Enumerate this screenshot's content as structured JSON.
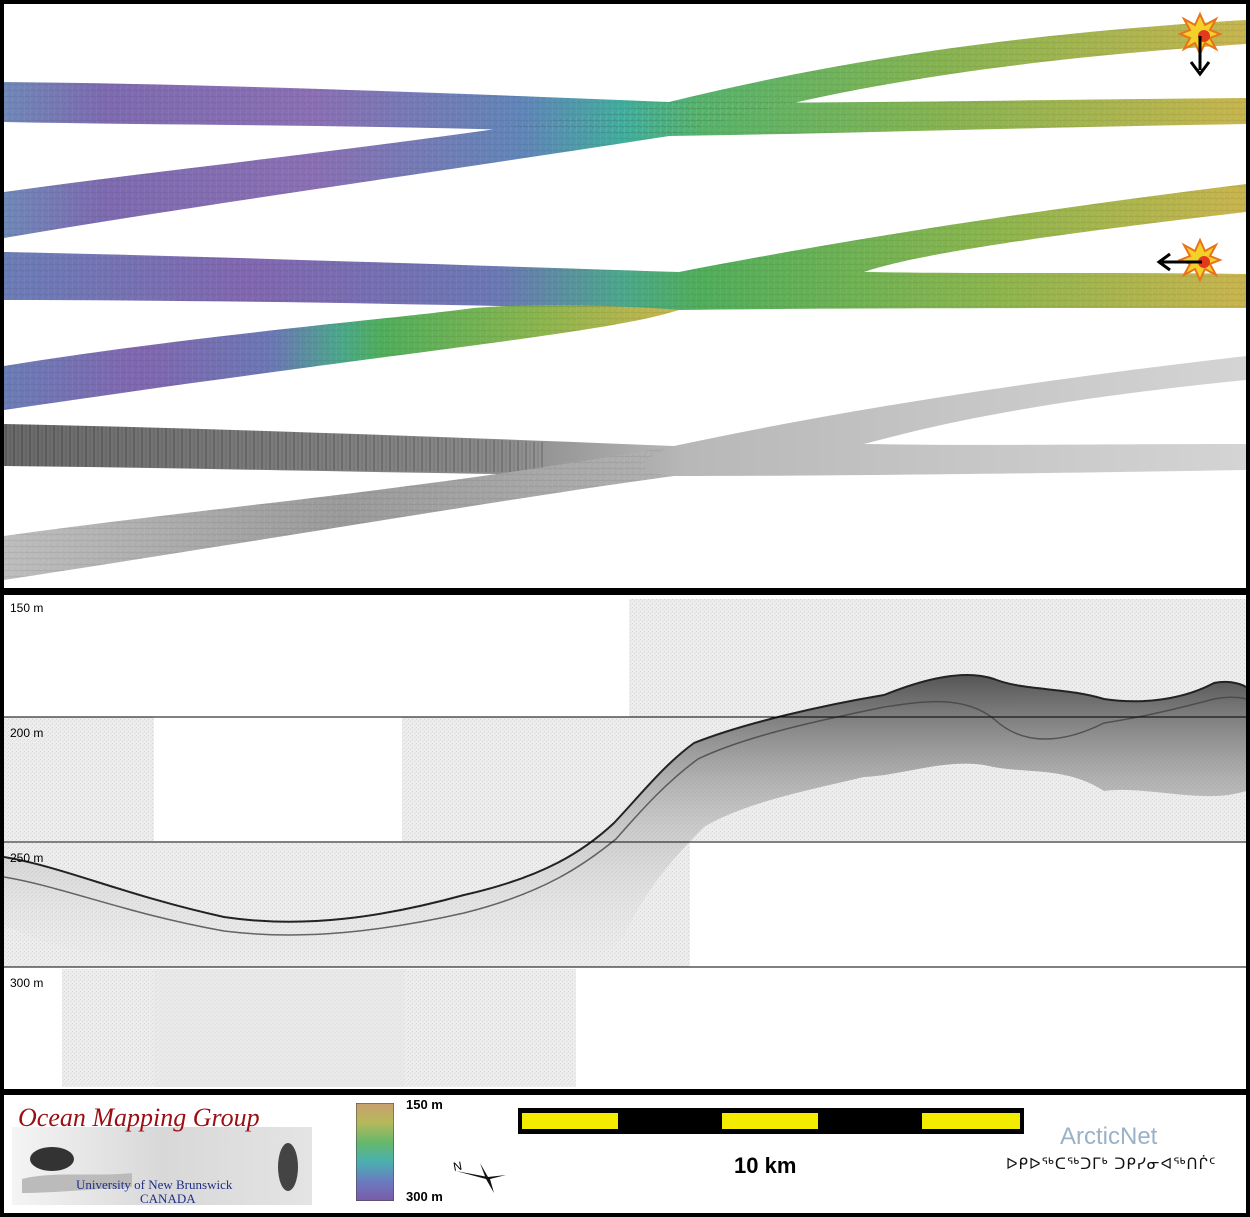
{
  "map": {
    "layers": [
      "hillshade-bathymetry-north",
      "hillshade-bathymetry-south",
      "backscatter-mosaic"
    ],
    "palette": {
      "deep": "#7f61a8",
      "mid": "#3fb3a0",
      "shallow": "#c8b04a"
    },
    "markers": [
      {
        "icon": "explosion-icon",
        "arrow": "arrow-down-icon"
      },
      {
        "icon": "explosion-icon",
        "arrow": "arrow-left-icon"
      }
    ]
  },
  "profile": {
    "depth_labels": [
      "150 m",
      "200 m",
      "250 m",
      "300 m"
    ]
  },
  "footer": {
    "omg_title": "Ocean Mapping Group",
    "omg_university": "University of New Brunswick",
    "omg_country": "CANADA",
    "colorbar_top": "150 m",
    "colorbar_bottom": "300 m",
    "north_letter": "N",
    "scale_label": "10 km",
    "arcticnet_name": "ArcticNet",
    "arcticnet_syllabics": "ᐅᑭᐅᖅᑕᖅᑐᒥᒃ ᑐᑭᓯᓂᐊᖅᑎᒌᑦ"
  }
}
